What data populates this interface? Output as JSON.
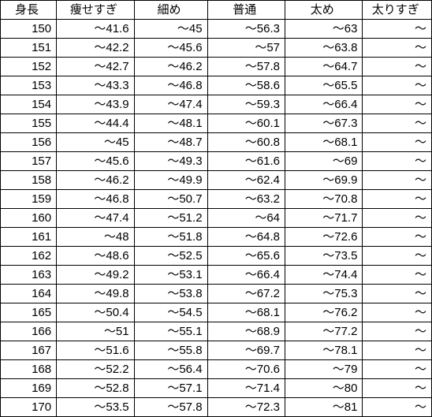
{
  "table": {
    "type": "table",
    "background_color": "#ffffff",
    "border_color": "#000000",
    "text_color": "#000000",
    "font_size_pt": 11,
    "columns": [
      {
        "label": "身長",
        "align_header": "center",
        "align_cell": "right",
        "width_pct": 13
      },
      {
        "label": "痩せすぎ",
        "align_header": "center",
        "align_cell": "right",
        "width_pct": 18
      },
      {
        "label": "細め",
        "align_header": "center",
        "align_cell": "right",
        "width_pct": 17
      },
      {
        "label": "普通",
        "align_header": "center",
        "align_cell": "right",
        "width_pct": 18
      },
      {
        "label": "太め",
        "align_header": "center",
        "align_cell": "right",
        "width_pct": 18
      },
      {
        "label": "太りすぎ",
        "align_header": "center",
        "align_cell": "right",
        "width_pct": 16
      }
    ],
    "rows": [
      {
        "height": "150",
        "c1": "～41.6",
        "c2": "～45",
        "c3": "～56.3",
        "c4": "～63",
        "c5": "～"
      },
      {
        "height": "151",
        "c1": "～42.2",
        "c2": "～45.6",
        "c3": "～57",
        "c4": "～63.8",
        "c5": "～"
      },
      {
        "height": "152",
        "c1": "～42.7",
        "c2": "～46.2",
        "c3": "～57.8",
        "c4": "～64.7",
        "c5": "～"
      },
      {
        "height": "153",
        "c1": "～43.3",
        "c2": "～46.8",
        "c3": "～58.6",
        "c4": "～65.5",
        "c5": "～"
      },
      {
        "height": "154",
        "c1": "～43.9",
        "c2": "～47.4",
        "c3": "～59.3",
        "c4": "～66.4",
        "c5": "～"
      },
      {
        "height": "155",
        "c1": "～44.4",
        "c2": "～48.1",
        "c3": "～60.1",
        "c4": "～67.3",
        "c5": "～"
      },
      {
        "height": "156",
        "c1": "～45",
        "c2": "～48.7",
        "c3": "～60.8",
        "c4": "～68.1",
        "c5": "～"
      },
      {
        "height": "157",
        "c1": "～45.6",
        "c2": "～49.3",
        "c3": "～61.6",
        "c4": "～69",
        "c5": "～"
      },
      {
        "height": "158",
        "c1": "～46.2",
        "c2": "～49.9",
        "c3": "～62.4",
        "c4": "～69.9",
        "c5": "～"
      },
      {
        "height": "159",
        "c1": "～46.8",
        "c2": "～50.7",
        "c3": "～63.2",
        "c4": "～70.8",
        "c5": "～"
      },
      {
        "height": "160",
        "c1": "～47.4",
        "c2": "～51.2",
        "c3": "～64",
        "c4": "～71.7",
        "c5": "～"
      },
      {
        "height": "161",
        "c1": "～48",
        "c2": "～51.8",
        "c3": "～64.8",
        "c4": "～72.6",
        "c5": "～"
      },
      {
        "height": "162",
        "c1": "～48.6",
        "c2": "～52.5",
        "c3": "～65.6",
        "c4": "～73.5",
        "c5": "～"
      },
      {
        "height": "163",
        "c1": "～49.2",
        "c2": "～53.1",
        "c3": "～66.4",
        "c4": "～74.4",
        "c5": "～"
      },
      {
        "height": "164",
        "c1": "～49.8",
        "c2": "～53.8",
        "c3": "～67.2",
        "c4": "～75.3",
        "c5": "～"
      },
      {
        "height": "165",
        "c1": "～50.4",
        "c2": "～54.5",
        "c3": "～68.1",
        "c4": "～76.2",
        "c5": "～"
      },
      {
        "height": "166",
        "c1": "～51",
        "c2": "～55.1",
        "c3": "～68.9",
        "c4": "～77.2",
        "c5": "～"
      },
      {
        "height": "167",
        "c1": "～51.6",
        "c2": "～55.8",
        "c3": "～69.7",
        "c4": "～78.1",
        "c5": "～"
      },
      {
        "height": "168",
        "c1": "～52.2",
        "c2": "～56.4",
        "c3": "～70.6",
        "c4": "～79",
        "c5": "～"
      },
      {
        "height": "169",
        "c1": "～52.8",
        "c2": "～57.1",
        "c3": "～71.4",
        "c4": "～80",
        "c5": "～"
      },
      {
        "height": "170",
        "c1": "～53.5",
        "c2": "～57.8",
        "c3": "～72.3",
        "c4": "～81",
        "c5": "～"
      }
    ]
  }
}
